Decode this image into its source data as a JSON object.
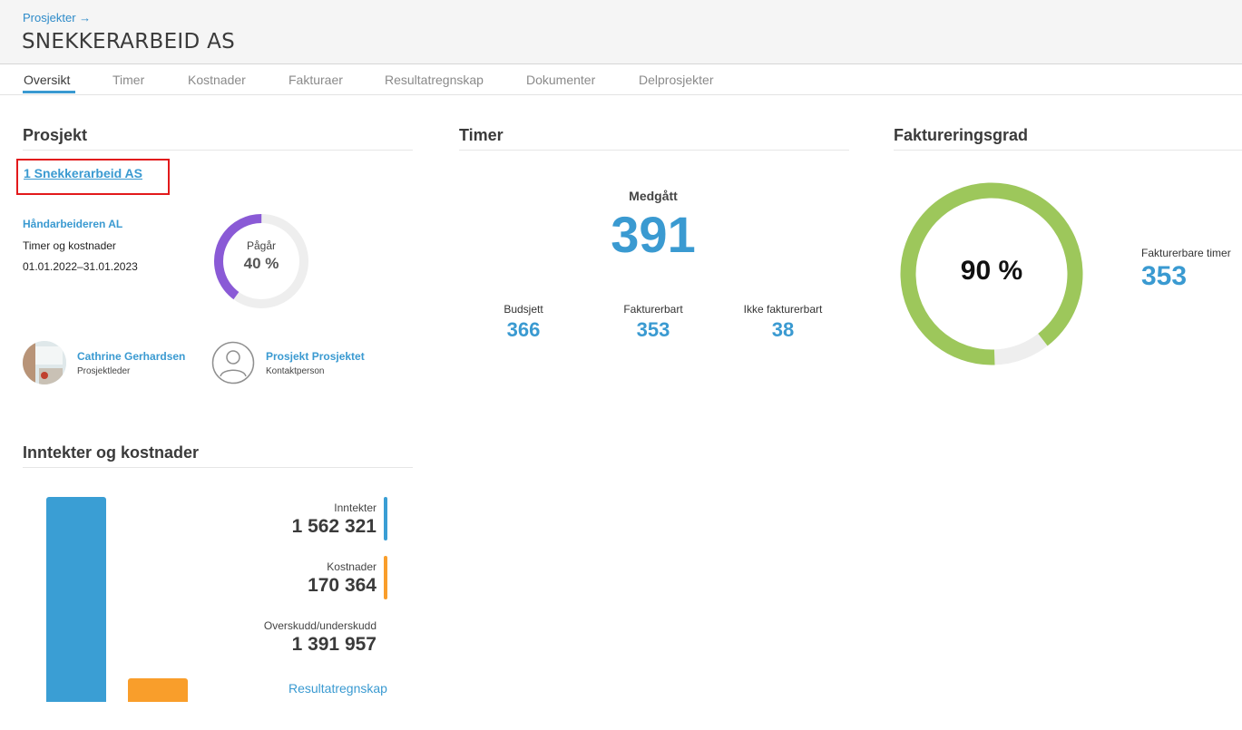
{
  "header": {
    "breadcrumb": "Prosjekter →",
    "title": "SNEKKERARBEID AS"
  },
  "tabs": [
    {
      "label": "Oversikt",
      "active": true
    },
    {
      "label": "Timer"
    },
    {
      "label": "Kostnader"
    },
    {
      "label": "Fakturaer"
    },
    {
      "label": "Resultatregnskap"
    },
    {
      "label": "Dokumenter"
    },
    {
      "label": "Delprosjekter"
    }
  ],
  "prosjekt": {
    "section_title": "Prosjekt",
    "project_link": "1 Snekkerarbeid AS",
    "customer": "Håndarbeideren AL",
    "type": "Timer og kostnader",
    "period": "01.01.2022–31.01.2023",
    "status_label": "Pågår",
    "progress_text": "40 %",
    "progress": 0.4,
    "progress_color": "#8a5ad6",
    "people": [
      {
        "name": "Cathrine Gerhardsen",
        "role": "Prosjektleder"
      },
      {
        "name": "Prosjekt Prosjektet",
        "role": "Kontaktperson"
      }
    ]
  },
  "timer": {
    "section_title": "Timer",
    "medgatt_label": "Medgått",
    "medgatt_value": "391",
    "stats": [
      {
        "label": "Budsjett",
        "value": "366"
      },
      {
        "label": "Fakturerbart",
        "value": "353"
      },
      {
        "label": "Ikke fakturerbart",
        "value": "38"
      }
    ]
  },
  "faktureringsgrad": {
    "section_title": "Faktureringsgrad",
    "percent_text": "90 %",
    "percent": 0.9,
    "ring_color": "#9dc75b",
    "billable_label": "Fakturerbare timer",
    "billable_value": "353"
  },
  "inntekter": {
    "section_title": "Inntekter og kostnader",
    "items": [
      {
        "label": "Inntekter",
        "value": "1 562 321",
        "color": "#3a9ed4"
      },
      {
        "label": "Kostnader",
        "value": "170 364",
        "color": "#f99e2b"
      },
      {
        "label": "Overskudd/underskudd",
        "value": "1 391 957"
      }
    ],
    "link": "Resultatregnskap"
  }
}
